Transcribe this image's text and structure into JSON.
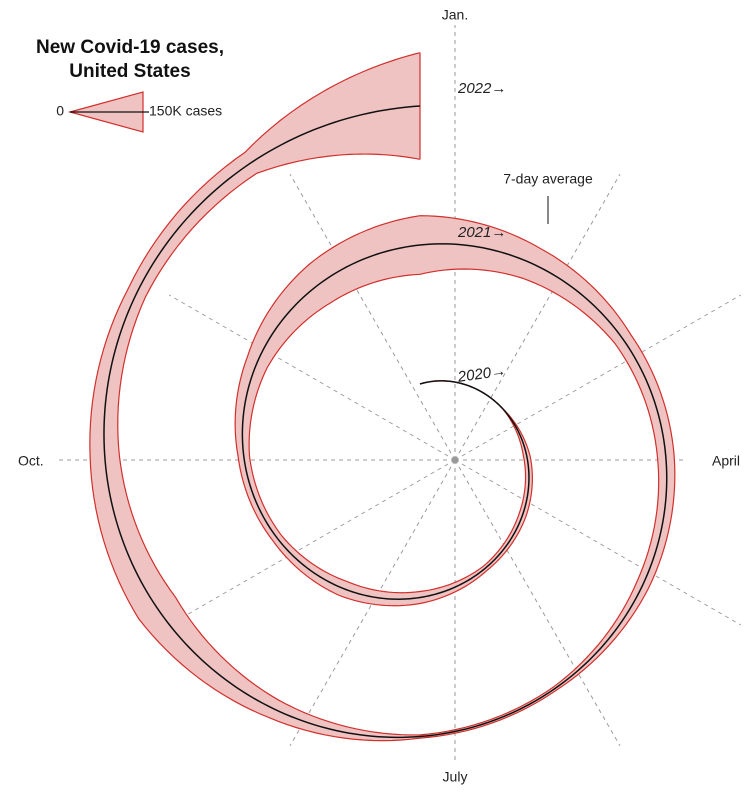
{
  "chart_data": {
    "type": "spiral",
    "title": [
      "New Covid-19 cases,",
      "United States"
    ],
    "legend_scale": [
      0,
      {
        "value": 150000,
        "label": "150K cases"
      }
    ],
    "annotation": "7-day average",
    "angle_labels": [
      "Jan.",
      "April",
      "July",
      "Oct."
    ],
    "year_labels": [
      "2020→",
      "2021→",
      "2022→"
    ],
    "fill_color": "#f0c3c3",
    "edge_color": "#d0302c",
    "line_color": "#111111",
    "x": [
      "2020-01",
      "2020-02",
      "2020-03",
      "2020-04",
      "2020-05",
      "2020-06",
      "2020-07",
      "2020-08",
      "2020-09",
      "2020-10",
      "2020-11",
      "2020-12",
      "2021-01",
      "2021-02",
      "2021-03",
      "2021-04",
      "2021-05",
      "2021-06",
      "2021-07",
      "2021-08",
      "2021-09",
      "2021-10",
      "2021-11",
      "2021-12",
      "2022-01"
    ],
    "values": [
      0,
      0,
      30,
      25000,
      28000,
      21000,
      45000,
      60000,
      38000,
      43000,
      85000,
      165000,
      220000,
      130000,
      68000,
      63000,
      50000,
      16000,
      12000,
      75000,
      160000,
      110000,
      72000,
      90000,
      400000
    ]
  }
}
